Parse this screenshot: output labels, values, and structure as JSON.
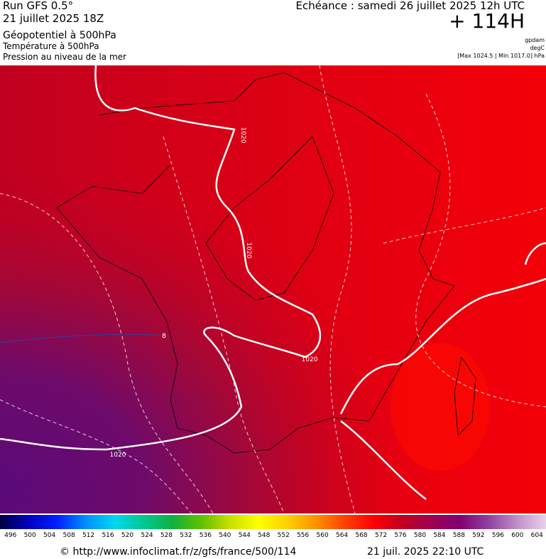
{
  "header": {
    "run": "Run GFS 0.5°",
    "run_date": "21 juillet 2025 18Z",
    "field_main": "Géopotentiel à 500hPa",
    "field_temp": "Température à 500hPa",
    "field_pressure": "Pression au niveau de la mer",
    "valid_time": "Echéance : samedi 26 juillet 2025 12h UTC",
    "lead": "+ 114H",
    "unit_geo": "gpdam",
    "unit_temp": "degC",
    "pressure_range": "[Max 1024.5 | Min 1017.0] hPa"
  },
  "map": {
    "isobar_labels": [
      "1020",
      "1020",
      "1020",
      "1020"
    ],
    "isotherm_label": "8"
  },
  "scale": {
    "labels": [
      496,
      500,
      504,
      508,
      512,
      516,
      520,
      524,
      528,
      532,
      536,
      540,
      544,
      548,
      552,
      556,
      560,
      564,
      568,
      572,
      576,
      580,
      584,
      588,
      592,
      596,
      600,
      604
    ]
  },
  "footer": {
    "source": "© http://www.infoclimat.fr/z/gfs/france/500/114",
    "generated": "21 juil. 2025 22:10 UTC"
  }
}
